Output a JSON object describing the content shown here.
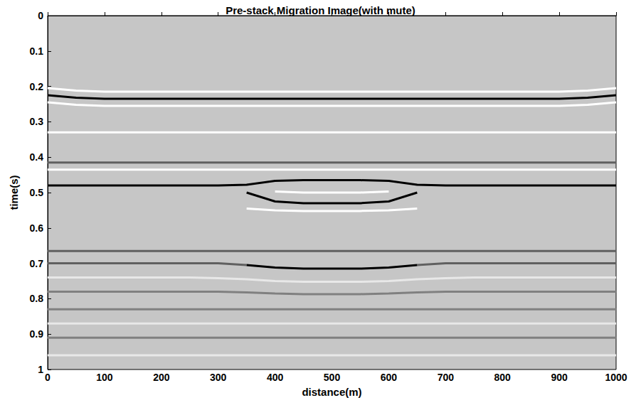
{
  "chart_data": {
    "type": "line",
    "title": "Pre-stack Migration Image(with mute)",
    "x_label": "distance(m)",
    "y_label": "time(s)",
    "x": [
      0,
      50,
      100,
      150,
      200,
      250,
      300,
      350,
      400,
      450,
      500,
      550,
      600,
      650,
      700,
      750,
      800,
      850,
      900,
      950,
      1000
    ],
    "xlim": [
      0,
      1000
    ],
    "xticks": [
      0,
      100,
      200,
      300,
      400,
      500,
      600,
      700,
      800,
      900,
      1000
    ],
    "ylim": [
      0,
      1
    ],
    "yticks": [
      0,
      0.1,
      0.2,
      0.3,
      0.4,
      0.5,
      0.6,
      0.7,
      0.8,
      0.9,
      1
    ],
    "series": [
      {
        "color": "#ffffff",
        "values": [
          0.205,
          0.212,
          0.215,
          0.215,
          0.215,
          0.215,
          0.215,
          0.215,
          0.215,
          0.215,
          0.215,
          0.215,
          0.215,
          0.215,
          0.215,
          0.215,
          0.215,
          0.215,
          0.215,
          0.212,
          0.205
        ]
      },
      {
        "color": "#000000",
        "values": [
          0.225,
          0.232,
          0.235,
          0.235,
          0.235,
          0.235,
          0.235,
          0.235,
          0.235,
          0.235,
          0.235,
          0.235,
          0.235,
          0.235,
          0.235,
          0.235,
          0.235,
          0.235,
          0.235,
          0.232,
          0.225
        ]
      },
      {
        "color": "#ffffff",
        "values": [
          0.245,
          0.252,
          0.255,
          0.255,
          0.255,
          0.255,
          0.255,
          0.255,
          0.255,
          0.255,
          0.255,
          0.255,
          0.255,
          0.255,
          0.255,
          0.255,
          0.255,
          0.255,
          0.255,
          0.252,
          0.245
        ]
      },
      {
        "color": "#ffffff",
        "values": [
          0.33,
          0.33,
          0.33,
          0.33,
          0.33,
          0.33,
          0.33,
          0.33,
          0.33,
          0.33,
          0.33,
          0.33,
          0.33,
          0.33,
          0.33,
          0.33,
          0.33,
          0.33,
          0.33,
          0.33,
          0.33
        ]
      },
      {
        "color": "#606060",
        "values": [
          0.415,
          0.415,
          0.415,
          0.415,
          0.415,
          0.415,
          0.415,
          0.415,
          0.415,
          0.415,
          0.415,
          0.415,
          0.415,
          0.415,
          0.415,
          0.415,
          0.415,
          0.415,
          0.415,
          0.415,
          0.415
        ]
      },
      {
        "color": "#ffffff",
        "values": [
          0.435,
          0.435,
          0.435,
          0.435,
          0.435,
          0.435,
          0.435,
          0.435,
          0.435,
          0.435,
          0.435,
          0.435,
          0.435,
          0.435,
          0.435,
          0.435,
          0.435,
          0.435,
          0.435,
          0.435,
          0.435
        ]
      },
      {
        "color": "#000000",
        "values": [
          0.48,
          0.48,
          0.48,
          0.48,
          0.48,
          0.48,
          0.48,
          0.478,
          0.467,
          0.465,
          0.465,
          0.465,
          0.467,
          0.478,
          0.48,
          0.48,
          0.48,
          0.48,
          0.48,
          0.48,
          0.48
        ]
      },
      {
        "color": "#ffffff",
        "values": [
          null,
          null,
          null,
          null,
          null,
          null,
          null,
          null,
          0.497,
          0.5,
          0.5,
          0.5,
          0.497,
          null,
          null,
          null,
          null,
          null,
          null,
          null,
          null
        ]
      },
      {
        "color": "#000000",
        "values": [
          null,
          null,
          null,
          null,
          null,
          null,
          null,
          0.5,
          0.525,
          0.53,
          0.53,
          0.53,
          0.525,
          0.5,
          null,
          null,
          null,
          null,
          null,
          null,
          null
        ]
      },
      {
        "color": "#ffffff",
        "values": [
          null,
          null,
          null,
          null,
          null,
          null,
          null,
          0.545,
          0.55,
          0.552,
          0.552,
          0.552,
          0.55,
          0.545,
          null,
          null,
          null,
          null,
          null,
          null,
          null
        ]
      },
      {
        "color": "#606060",
        "values": [
          0.665,
          0.665,
          0.665,
          0.665,
          0.665,
          0.665,
          0.665,
          0.665,
          0.665,
          0.665,
          0.665,
          0.665,
          0.665,
          0.665,
          0.665,
          0.665,
          0.665,
          0.665,
          0.665,
          0.665,
          0.665
        ]
      },
      {
        "color": "#606060",
        "values": [
          0.7,
          0.7,
          0.7,
          0.7,
          0.7,
          0.7,
          0.7,
          0.705,
          null,
          null,
          null,
          null,
          null,
          0.705,
          0.7,
          0.7,
          0.7,
          0.7,
          0.7,
          0.7,
          0.7
        ]
      },
      {
        "color": "#000000",
        "values": [
          null,
          null,
          null,
          null,
          null,
          null,
          null,
          0.705,
          0.712,
          0.715,
          0.715,
          0.715,
          0.712,
          0.705,
          null,
          null,
          null,
          null,
          null,
          null,
          null
        ]
      },
      {
        "color": "#e8e8e8",
        "values": [
          0.74,
          0.74,
          0.74,
          0.74,
          0.74,
          0.74,
          0.742,
          0.745,
          0.75,
          0.752,
          0.752,
          0.752,
          0.75,
          0.745,
          0.742,
          0.74,
          0.74,
          0.74,
          0.74,
          0.74,
          0.74
        ]
      },
      {
        "color": "#808080",
        "values": [
          0.78,
          0.78,
          0.78,
          0.78,
          0.78,
          0.78,
          0.78,
          0.782,
          0.785,
          0.787,
          0.787,
          0.787,
          0.785,
          0.782,
          0.78,
          0.78,
          0.78,
          0.78,
          0.78,
          0.78,
          0.78
        ]
      },
      {
        "color": "#808080",
        "values": [
          0.83,
          0.83,
          0.83,
          0.83,
          0.83,
          0.83,
          0.83,
          0.83,
          0.83,
          0.83,
          0.83,
          0.83,
          0.83,
          0.83,
          0.83,
          0.83,
          0.83,
          0.83,
          0.83,
          0.83,
          0.83
        ]
      },
      {
        "color": "#e8e8e8",
        "values": [
          0.87,
          0.87,
          0.87,
          0.87,
          0.87,
          0.87,
          0.87,
          0.87,
          0.87,
          0.87,
          0.87,
          0.87,
          0.87,
          0.87,
          0.87,
          0.87,
          0.87,
          0.87,
          0.87,
          0.87,
          0.87
        ]
      },
      {
        "color": "#808080",
        "values": [
          0.91,
          0.91,
          0.91,
          0.91,
          0.91,
          0.91,
          0.91,
          0.91,
          0.91,
          0.91,
          0.91,
          0.91,
          0.91,
          0.91,
          0.91,
          0.91,
          0.91,
          0.91,
          0.91,
          0.91,
          0.91
        ]
      },
      {
        "color": "#e8e8e8",
        "values": [
          0.96,
          0.96,
          0.96,
          0.96,
          0.96,
          0.96,
          0.96,
          0.96,
          0.96,
          0.96,
          0.96,
          0.96,
          0.96,
          0.96,
          0.96,
          0.96,
          0.96,
          0.96,
          0.96,
          0.96,
          0.96
        ]
      }
    ]
  }
}
